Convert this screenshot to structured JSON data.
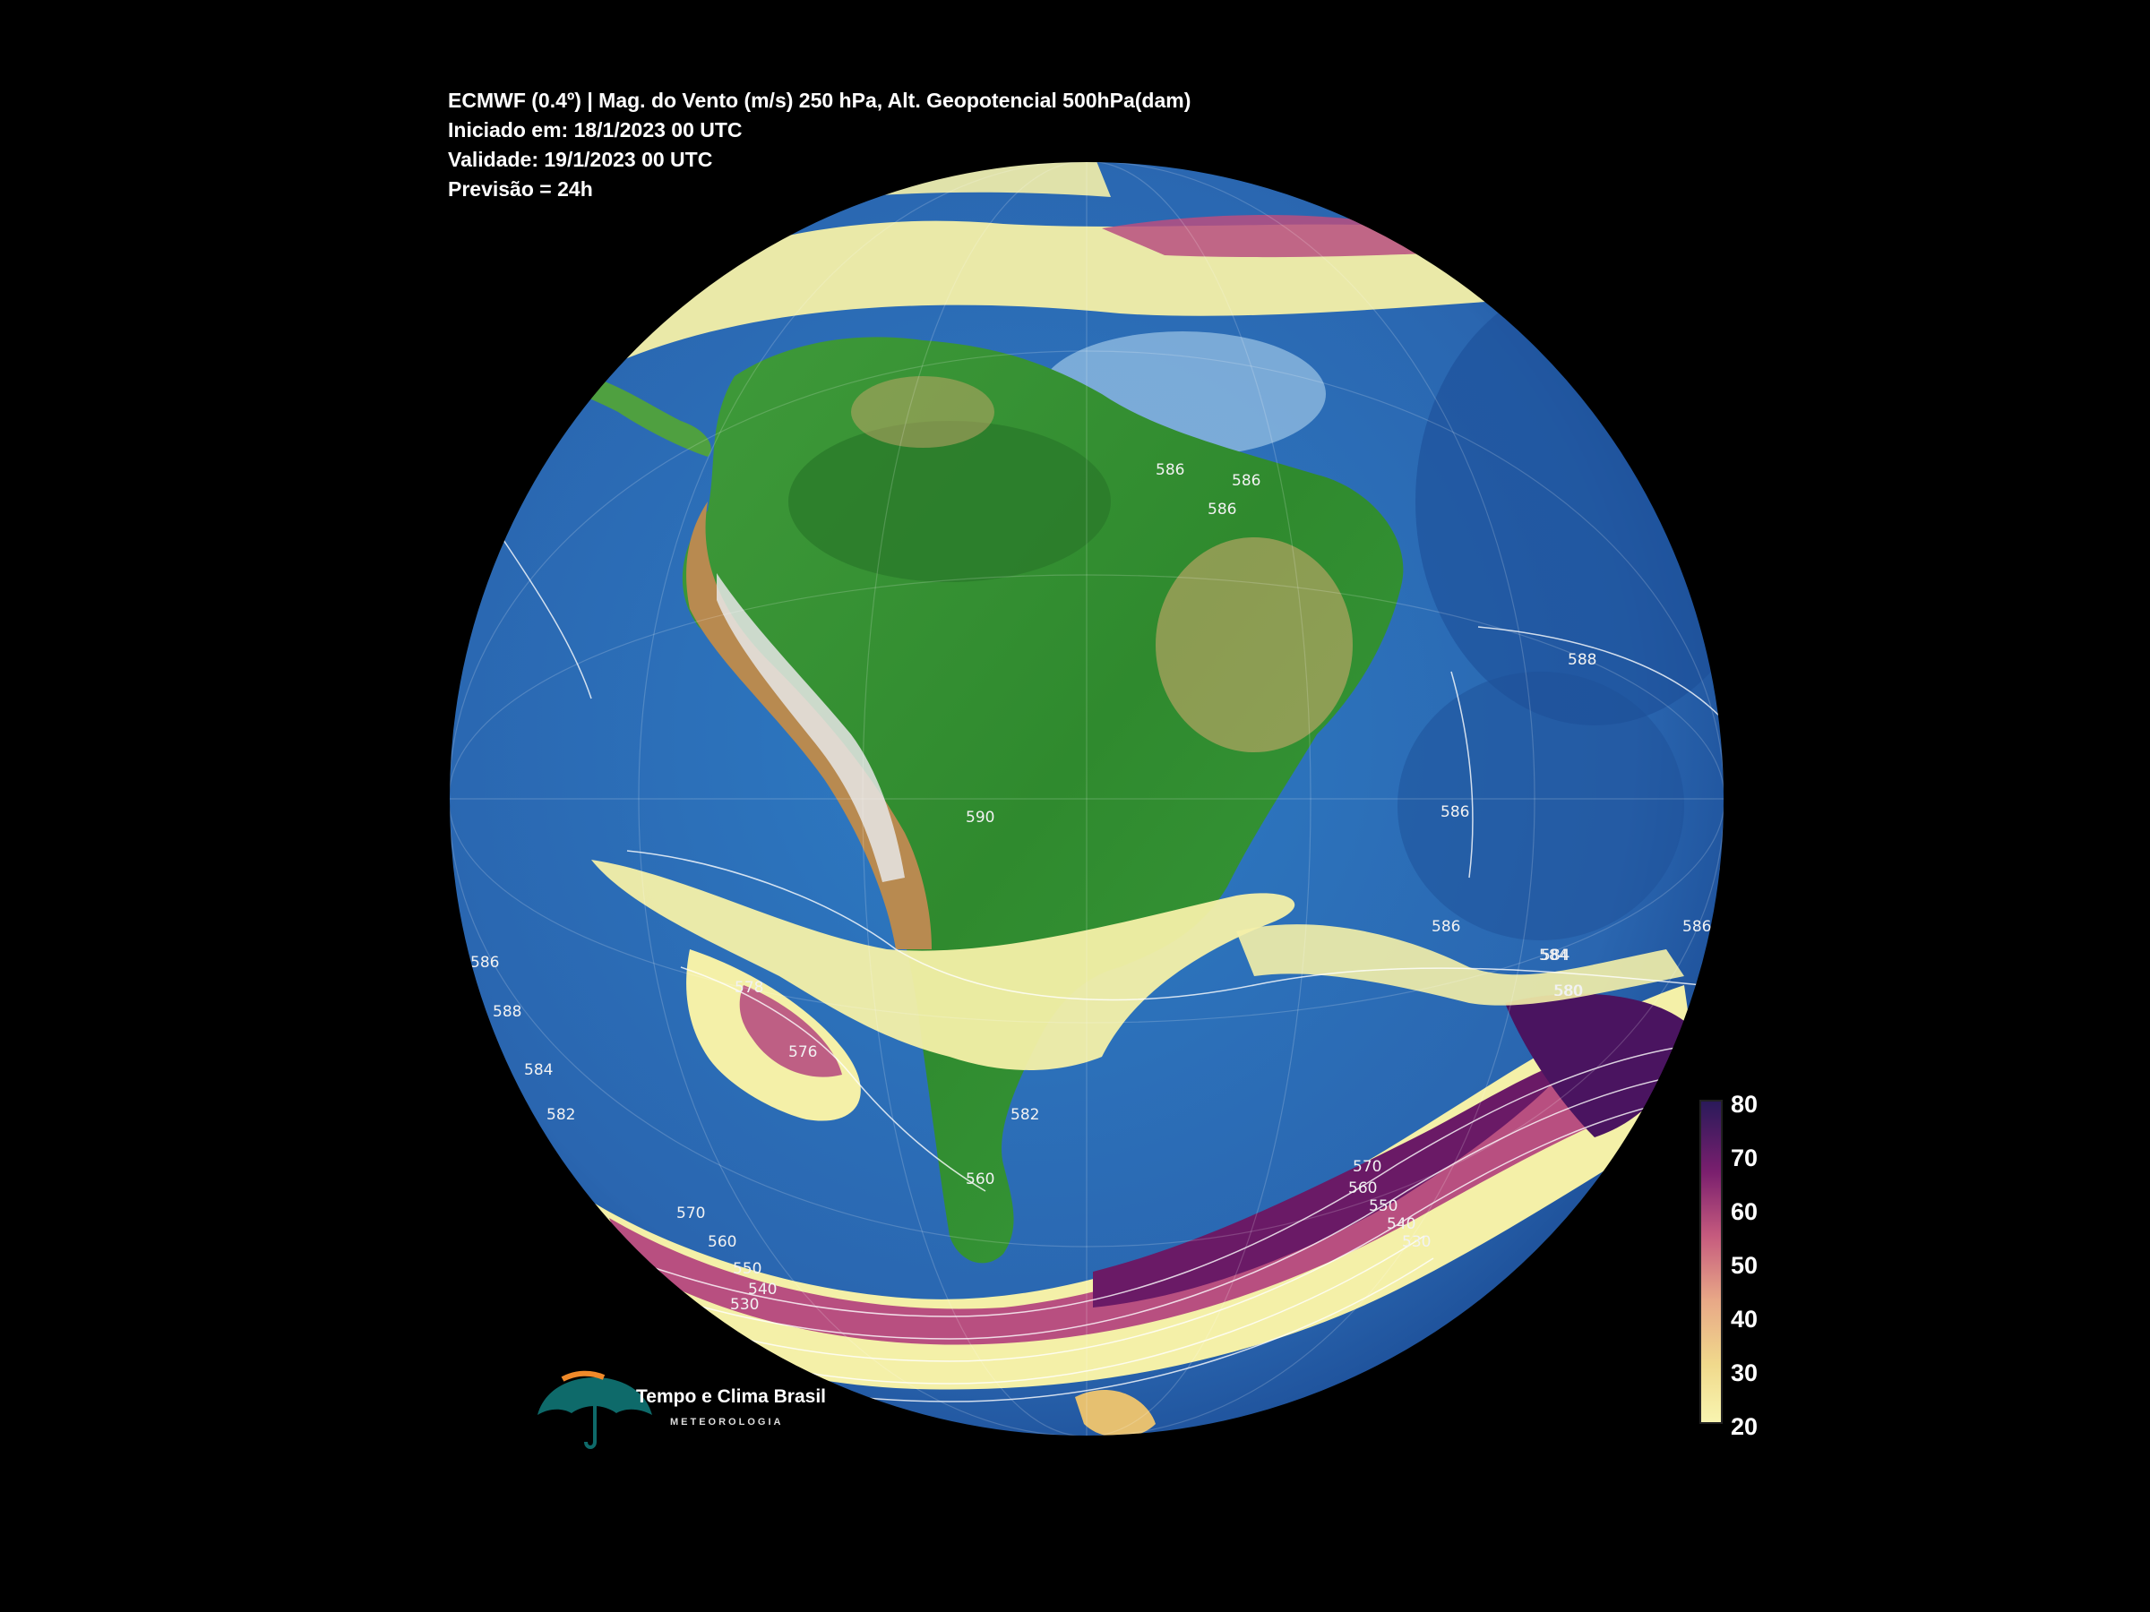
{
  "header": {
    "line1": "ECMWF (0.4º) | Mag. do Vento (m/s) 250 hPa, Alt. Geopotencial 500hPa(dam)",
    "line2": "Iniciado em: 18/1/2023 00 UTC",
    "line3": "Validade: 19/1/2023 00 UTC",
    "line4": "Previsão = 24h"
  },
  "colorbar": {
    "ticks": [
      "80",
      "70",
      "60",
      "50",
      "40",
      "30",
      "20"
    ],
    "colors": [
      "#f8f5b0",
      "#f0d98c",
      "#e8a887",
      "#c65b7e",
      "#7a1f6e",
      "#2a1a5a"
    ]
  },
  "contour_labels": [
    "586",
    "588",
    "586",
    "584",
    "588",
    "584",
    "582",
    "580",
    "578",
    "576",
    "570",
    "560",
    "550",
    "540",
    "530",
    "590",
    "586",
    "586",
    "588",
    "586",
    "584",
    "580",
    "570",
    "560",
    "550",
    "540",
    "530",
    "560",
    "582",
    "586",
    "586"
  ],
  "logo": {
    "name": "Tempo e Clima Brasil",
    "subtitle": "METEOROLOGIA"
  },
  "colors": {
    "ocean": "#2f6fb4",
    "land": "#3a9a3a",
    "jet_weak": "#f4f0a8",
    "jet_strong": "#7a1f6e"
  }
}
